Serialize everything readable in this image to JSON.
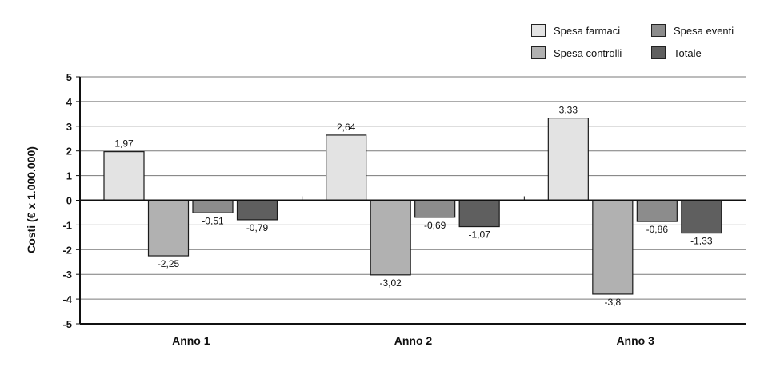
{
  "chart_data": {
    "type": "bar",
    "categories": [
      "Anno 1",
      "Anno 2",
      "Anno 3"
    ],
    "series": [
      {
        "name": "Spesa farmaci",
        "values": [
          1.97,
          2.64,
          3.33
        ],
        "labels": [
          "1,97",
          "2,64",
          "3,33"
        ],
        "color": "#e3e3e3"
      },
      {
        "name": "Spesa controlli",
        "values": [
          -2.25,
          -3.02,
          -3.8
        ],
        "labels": [
          "-2,25",
          "-3,02",
          "-3,8"
        ],
        "color": "#b1b1b1"
      },
      {
        "name": "Spesa eventi",
        "values": [
          -0.51,
          -0.69,
          -0.86
        ],
        "labels": [
          "-0,51",
          "-0,69",
          "-0,86"
        ],
        "color": "#8c8c8c"
      },
      {
        "name": "Totale",
        "values": [
          -0.79,
          -1.07,
          -1.33
        ],
        "labels": [
          "-0,79",
          "-1,07",
          "-1,33"
        ],
        "color": "#5f5f5f"
      }
    ],
    "ylabel": "Costi (€ x 1.000.000)",
    "xlabel": "",
    "title": "",
    "ylim": [
      -5,
      5
    ],
    "yticks": [
      5,
      4,
      3,
      2,
      1,
      0,
      -1,
      -2,
      -3,
      -4,
      -5
    ],
    "grid": true,
    "legend_position": "top-right"
  }
}
